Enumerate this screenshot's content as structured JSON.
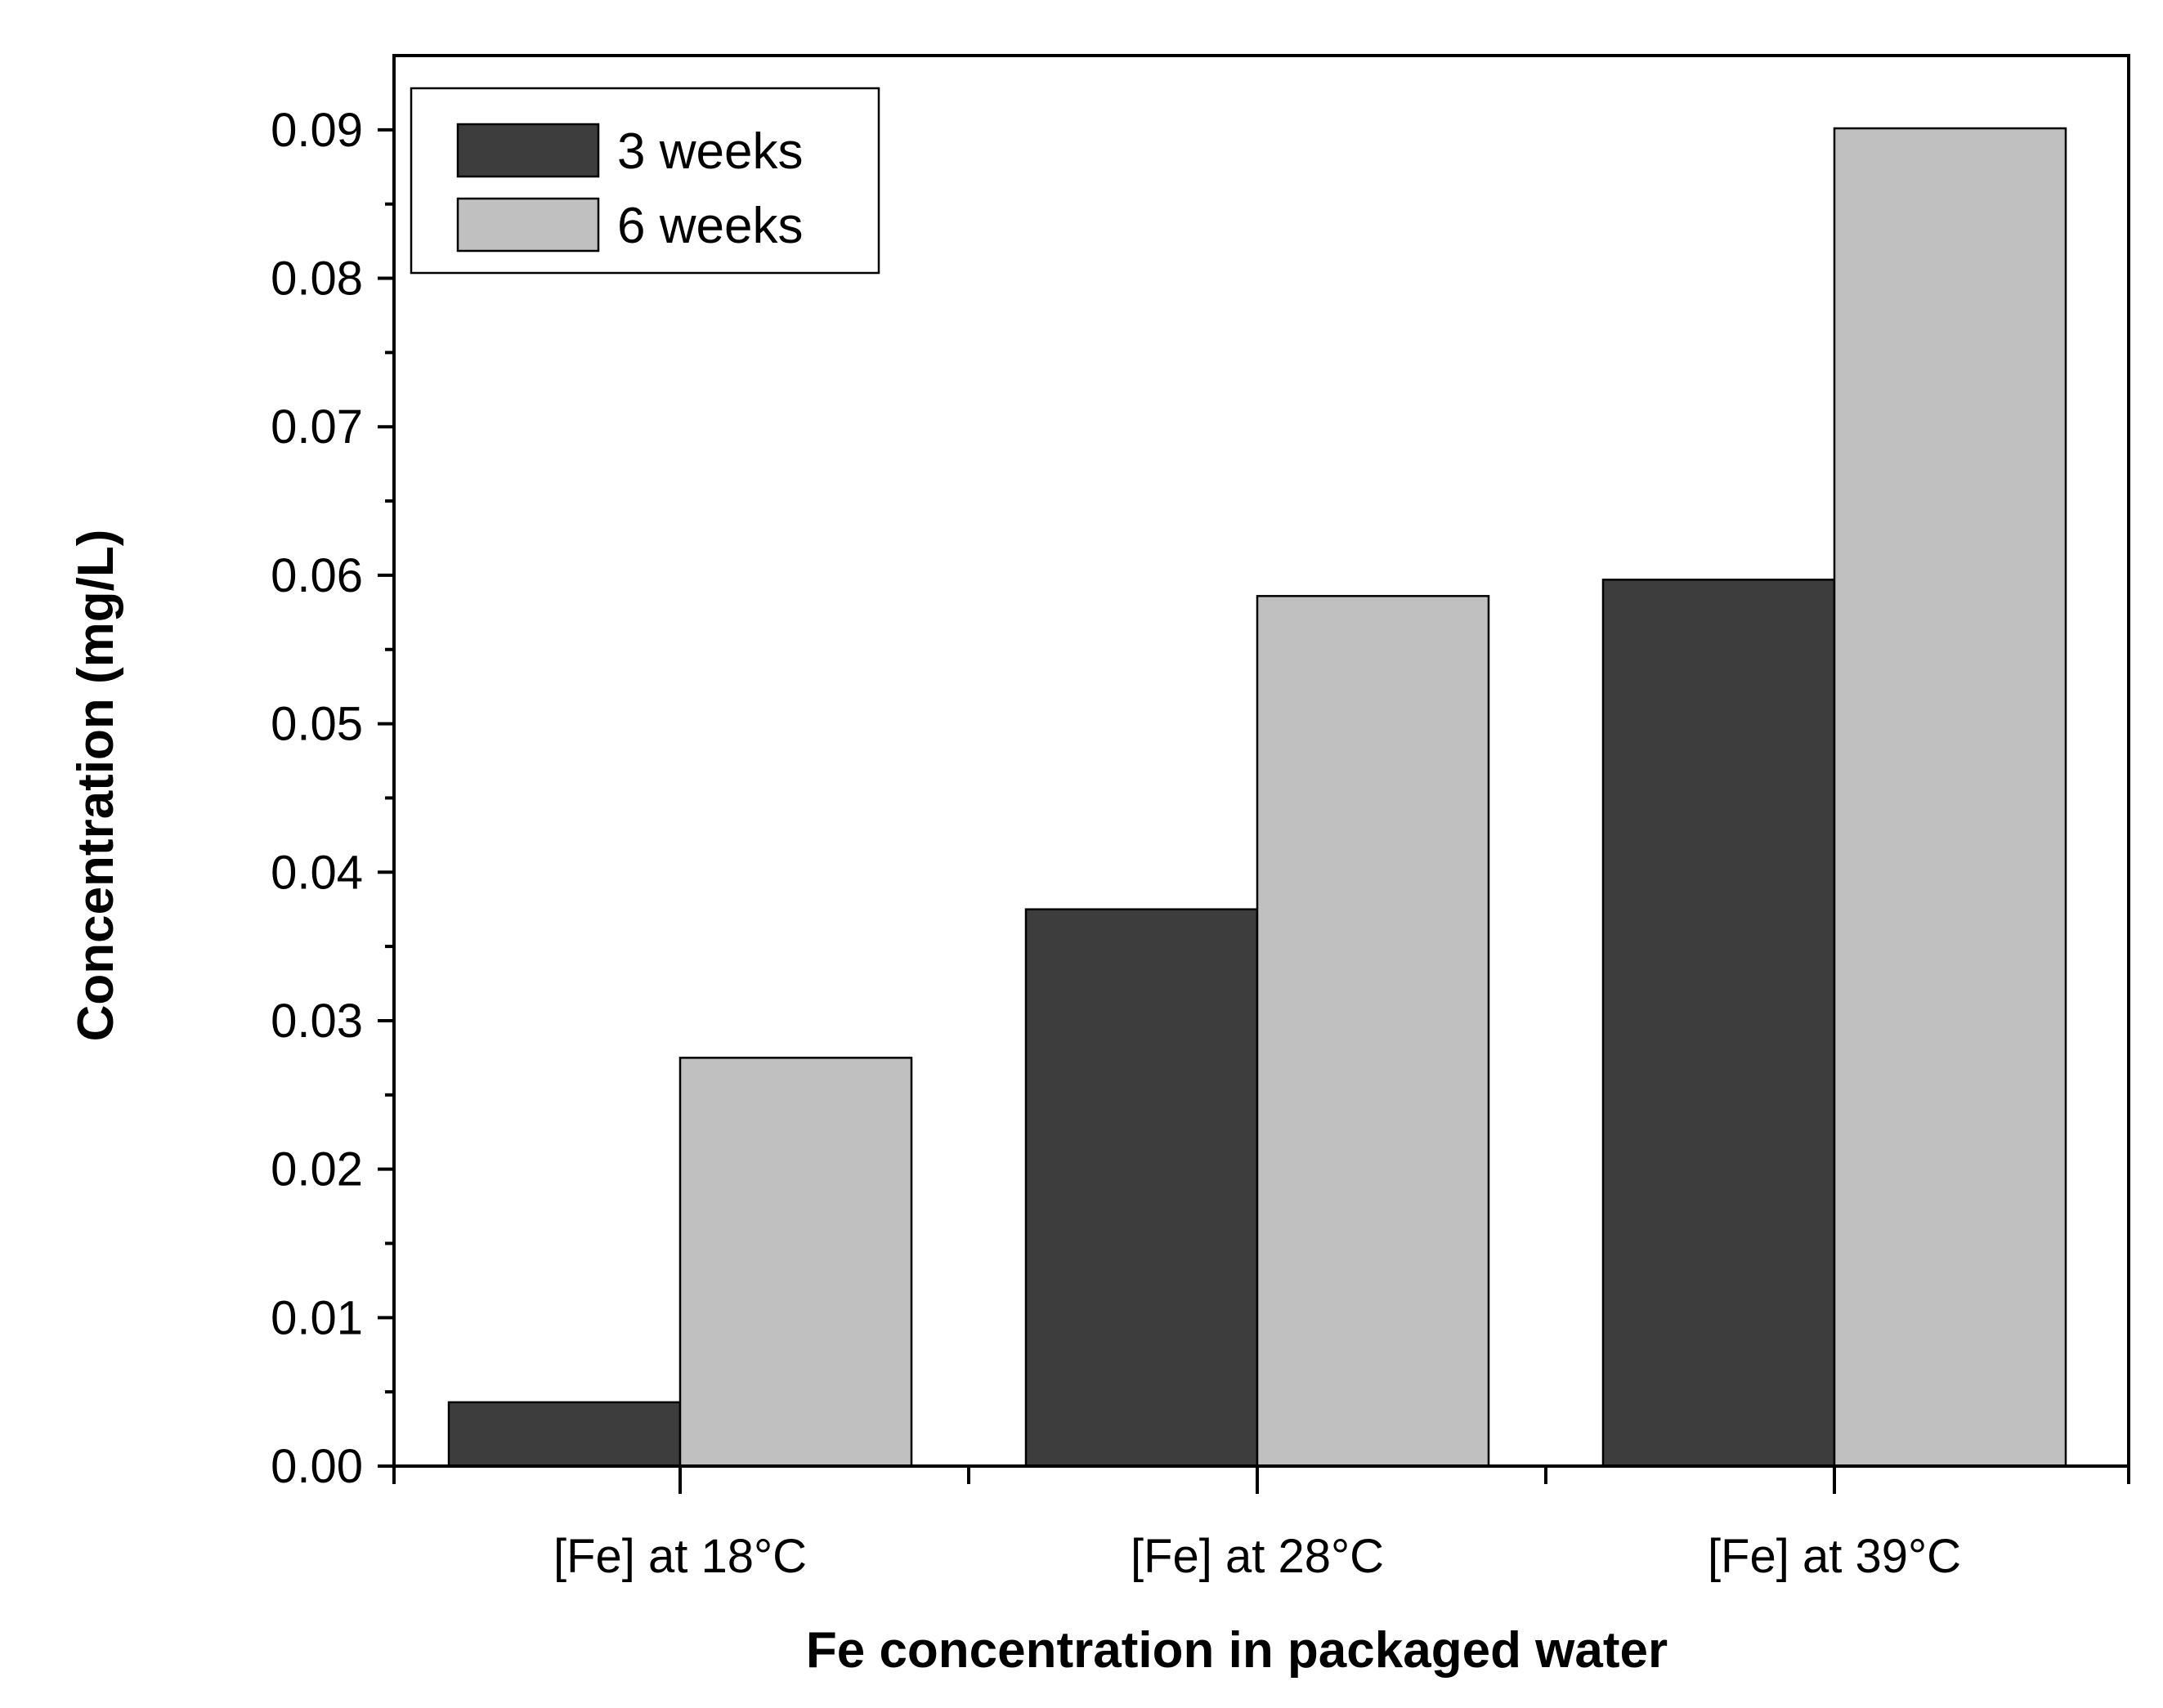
{
  "chart_data": {
    "type": "bar",
    "title": "",
    "xlabel": "Fe concentration in packaged water",
    "ylabel": "Concentration (mg/L)",
    "ylim": [
      0,
      0.095
    ],
    "yticks": [
      "0.00",
      "0.01",
      "0.02",
      "0.03",
      "0.04",
      "0.05",
      "0.06",
      "0.07",
      "0.08",
      "0.09"
    ],
    "categories": [
      "[Fe] at 18°C",
      "[Fe] at 28°C",
      "[Fe] at 39°C"
    ],
    "series": [
      {
        "name": "3 weeks",
        "values": [
          0.0043,
          0.0375,
          0.0597
        ],
        "color": "#3d3d3d"
      },
      {
        "name": "6 weeks",
        "values": [
          0.0275,
          0.0586,
          0.0901
        ],
        "color": "#c0c0c0"
      }
    ],
    "grid": false,
    "legend_position": "top-left"
  }
}
